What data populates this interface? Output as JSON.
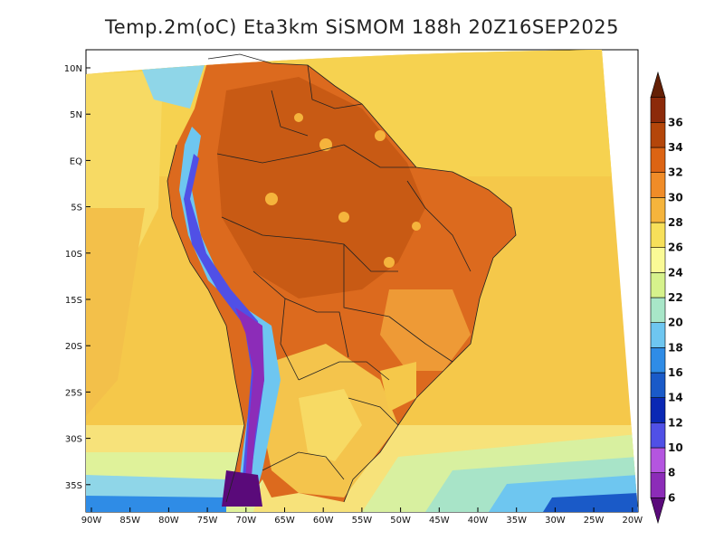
{
  "title": "Temp.2m(oC) Eta3km SiSMOM 188h 20Z16SEP2025",
  "lat_labels": [
    "10N",
    "5N",
    "EQ",
    "5S",
    "10S",
    "15S",
    "20S",
    "25S",
    "30S",
    "35S"
  ],
  "lon_labels": [
    "90W",
    "85W",
    "80W",
    "75W",
    "70W",
    "65W",
    "60W",
    "55W",
    "50W",
    "45W",
    "40W",
    "35W",
    "30W",
    "25W",
    "20W"
  ],
  "colorbar": {
    "labels": [
      "6",
      "8",
      "10",
      "12",
      "14",
      "16",
      "18",
      "20",
      "22",
      "24",
      "26",
      "28",
      "30",
      "32",
      "34",
      "36"
    ],
    "colors": [
      "#5a0a7a",
      "#8c2cb8",
      "#b455e0",
      "#5050e6",
      "#0a28b4",
      "#1a5ac8",
      "#2f8ce6",
      "#6ec6f0",
      "#a8e6c8",
      "#d6f28c",
      "#fafa96",
      "#f7e05a",
      "#f5b43c",
      "#f08c28",
      "#dc6414",
      "#b4460a",
      "#8c2a0a",
      "#642006"
    ]
  }
}
